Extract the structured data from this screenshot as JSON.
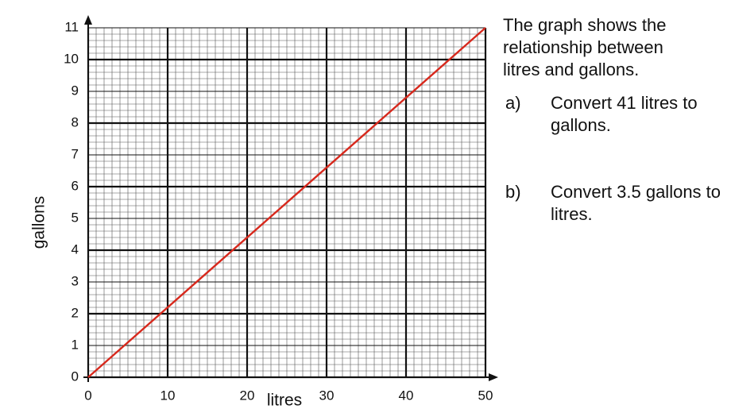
{
  "chart_data": {
    "type": "line",
    "x_label": "litres",
    "y_label": "gallons",
    "x": [
      0,
      50
    ],
    "values": [
      0,
      11
    ],
    "color": "#d7281c",
    "xlim": [
      0,
      50
    ],
    "ylim": [
      0,
      11
    ],
    "xticks": [
      0,
      10,
      20,
      30,
      40,
      50
    ],
    "yticks": [
      0,
      1,
      2,
      3,
      4,
      5,
      6,
      7,
      8,
      9,
      10,
      11
    ],
    "grid": true
  },
  "text": {
    "intro": "The graph shows the relationship between litres and gallons.",
    "questions": [
      {
        "label": "a)",
        "text": "Convert 41 litres to gallons."
      },
      {
        "label": "b)",
        "text": "Convert 3.5 gallons to litres."
      }
    ]
  }
}
